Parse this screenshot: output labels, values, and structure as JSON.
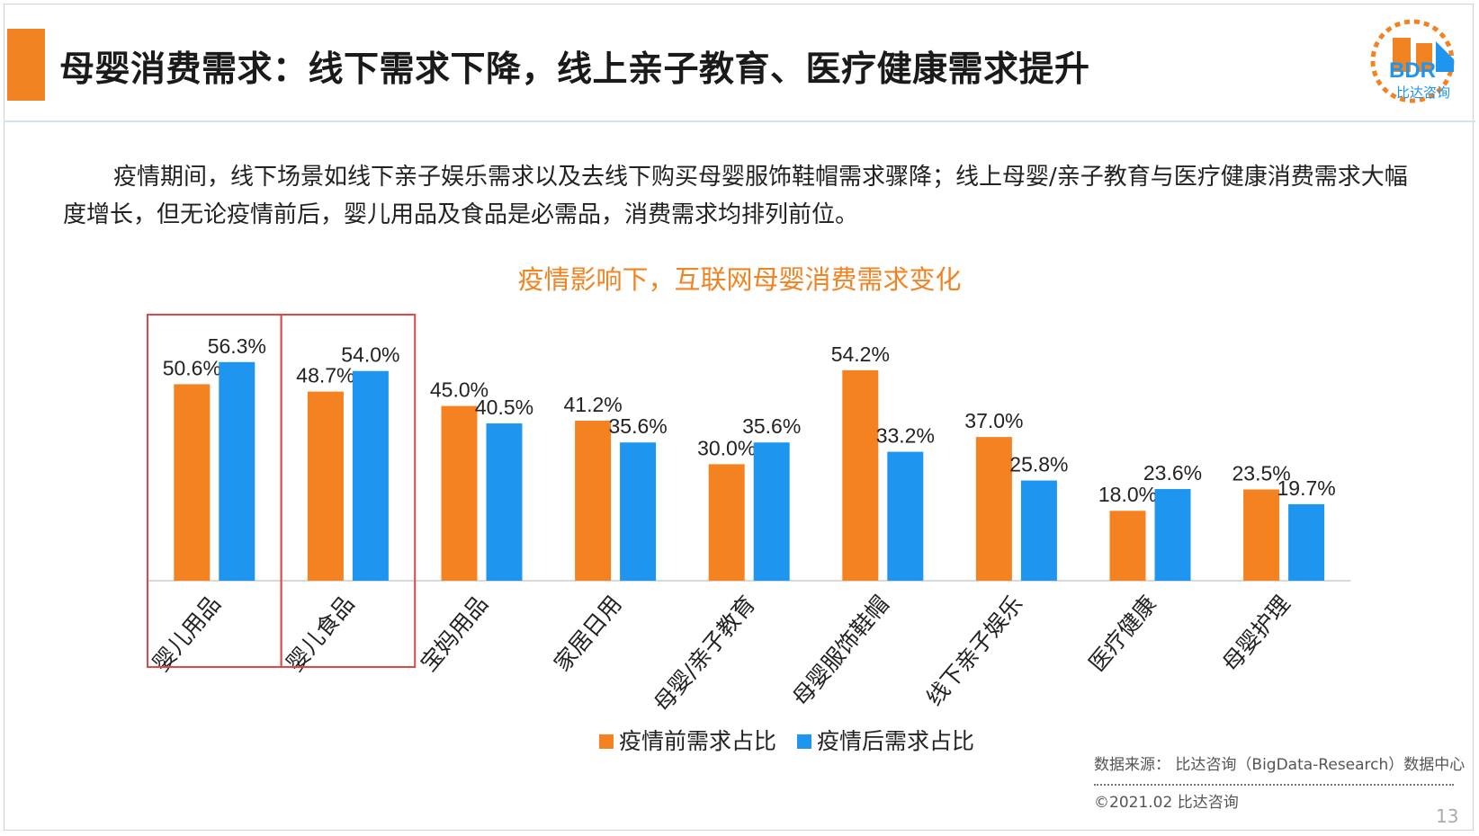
{
  "header": {
    "title": "母婴消费需求：线下需求下降，线上亲子教育、医疗健康需求提升",
    "logo_text": "BDR",
    "logo_subtext": "比达咨询"
  },
  "intro": "疫情期间，线下场景如线下亲子娱乐需求以及去线下购买母婴服饰鞋帽需求骤降；线上母婴/亲子教育与医疗健康消费需求大幅度增长，但无论疫情前后，婴儿用品及食品是必需品，消费需求均排列前位。",
  "chart_data": {
    "type": "bar",
    "title": "疫情影响下，互联网母婴消费需求变化",
    "categories": [
      "婴儿用品",
      "婴儿食品",
      "宝妈用品",
      "家居日用",
      "母婴/亲子教育",
      "母婴服饰鞋帽",
      "线下亲子娱乐",
      "医疗健康",
      "母婴护理"
    ],
    "series": [
      {
        "name": "疫情前需求占比",
        "values": [
          50.6,
          48.7,
          45.0,
          41.2,
          30.0,
          54.2,
          37.0,
          18.0,
          23.5
        ],
        "labels": [
          "50.6%",
          "48.7%",
          "45.0%",
          "41.2%",
          "30.0%",
          "54.2%",
          "37.0%",
          "18.0%",
          "23.5%"
        ],
        "color": "#f58220"
      },
      {
        "name": "疫情后需求占比",
        "values": [
          56.3,
          54.0,
          40.5,
          35.6,
          35.6,
          33.2,
          25.8,
          23.6,
          19.7
        ],
        "labels": [
          "56.3%",
          "54.0%",
          "40.5%",
          "35.6%",
          "35.6%",
          "33.2%",
          "25.8%",
          "23.6%",
          "19.7%"
        ],
        "color": "#1e96f0"
      }
    ],
    "ylim": [
      0,
      60
    ],
    "highlighted_categories": [
      "婴儿用品",
      "婴儿食品"
    ],
    "highlight_color": "#e04848",
    "legend_position": "bottom",
    "grid": false
  },
  "footer": {
    "source": "数据来源： 比达咨询（BigData-Research）数据中心",
    "copyright": "©2021.02  比达咨询",
    "page_number": "13"
  }
}
